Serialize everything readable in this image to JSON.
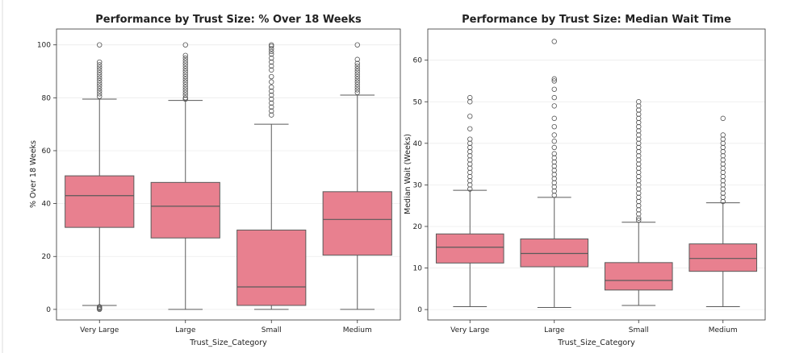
{
  "chart_data": [
    {
      "type": "box",
      "title": "Performance by Trust Size: % Over 18 Weeks",
      "xlabel": "Trust_Size_Category",
      "ylabel": "% Over 18 Weeks",
      "ylim": [
        -4,
        106
      ],
      "yticks": [
        0,
        20,
        40,
        60,
        80,
        100
      ],
      "grid": true,
      "box_color": "#e8808f",
      "categories": [
        "Very Large",
        "Large",
        "Small",
        "Medium"
      ],
      "boxes": [
        {
          "category": "Very Large",
          "whisker_low": 1.5,
          "q1": 31,
          "median": 43,
          "q3": 50.5,
          "whisker_high": 79.5,
          "outliers": [
            0,
            0.3,
            0.6,
            1.0,
            80.5,
            81.5,
            82.5,
            83.5,
            84.5,
            85.5,
            86.5,
            87.5,
            88.5,
            89.5,
            90.5,
            91.5,
            92.5,
            93.5,
            100
          ]
        },
        {
          "category": "Large",
          "whisker_low": 0,
          "q1": 27,
          "median": 39,
          "q3": 48,
          "whisker_high": 79,
          "outliers": [
            79.5,
            80,
            81,
            82,
            83,
            84,
            85,
            86,
            87,
            88,
            89,
            90,
            91,
            92,
            93,
            94,
            95,
            96,
            100
          ]
        },
        {
          "category": "Small",
          "whisker_low": 0,
          "q1": 1.5,
          "median": 8.5,
          "q3": 30,
          "whisker_high": 70,
          "outliers": [
            73.5,
            75,
            76.5,
            78,
            79.5,
            81,
            82.5,
            84,
            86,
            88,
            90.5,
            92,
            93.5,
            95,
            96.5,
            97.5,
            98.5,
            99.5,
            100
          ]
        },
        {
          "category": "Medium",
          "whisker_low": 0,
          "q1": 20.5,
          "median": 34,
          "q3": 44.5,
          "whisker_high": 81,
          "outliers": [
            82,
            83,
            84,
            85,
            86,
            87,
            88,
            89,
            90,
            91,
            92,
            93,
            94.5,
            100
          ]
        }
      ]
    },
    {
      "type": "box",
      "title": "Performance by Trust Size: Median Wait Time",
      "xlabel": "Trust_Size_Category",
      "ylabel": "Median Wait (Weeks)",
      "ylim": [
        -2.5,
        67.5
      ],
      "yticks": [
        0,
        10,
        20,
        30,
        40,
        50,
        60
      ],
      "grid": true,
      "box_color": "#e8808f",
      "categories": [
        "Very Large",
        "Large",
        "Small",
        "Medium"
      ],
      "boxes": [
        {
          "category": "Very Large",
          "whisker_low": 0.7,
          "q1": 11.2,
          "median": 15,
          "q3": 18.2,
          "whisker_high": 28.7,
          "outliers": [
            29,
            30,
            31,
            32,
            33,
            34,
            35,
            36,
            37,
            38,
            39,
            40,
            41,
            43.5,
            46.5,
            50,
            51
          ]
        },
        {
          "category": "Large",
          "whisker_low": 0.5,
          "q1": 10.3,
          "median": 13.5,
          "q3": 17,
          "whisker_high": 27,
          "outliers": [
            27.5,
            28.5,
            29.5,
            30.5,
            31.5,
            32.5,
            33.5,
            34.5,
            35.5,
            36.5,
            37.5,
            39,
            40.5,
            42,
            44,
            46,
            49,
            51,
            53,
            55,
            55.5,
            64.5
          ]
        },
        {
          "category": "Small",
          "whisker_low": 1,
          "q1": 4.7,
          "median": 7,
          "q3": 11.3,
          "whisker_high": 21,
          "outliers": [
            21.5,
            22,
            23,
            24,
            25,
            26,
            27,
            28,
            29,
            30,
            31,
            32,
            33,
            34,
            35,
            36,
            37,
            38,
            39,
            40,
            41,
            42,
            43,
            44,
            45,
            46,
            47,
            48,
            49,
            50
          ]
        },
        {
          "category": "Medium",
          "whisker_low": 0.7,
          "q1": 9.2,
          "median": 12.3,
          "q3": 15.8,
          "whisker_high": 25.7,
          "outliers": [
            26,
            27,
            28,
            29,
            30,
            31,
            32,
            33,
            34,
            35,
            36,
            37,
            38,
            39,
            40,
            41,
            42,
            46
          ]
        }
      ]
    }
  ]
}
